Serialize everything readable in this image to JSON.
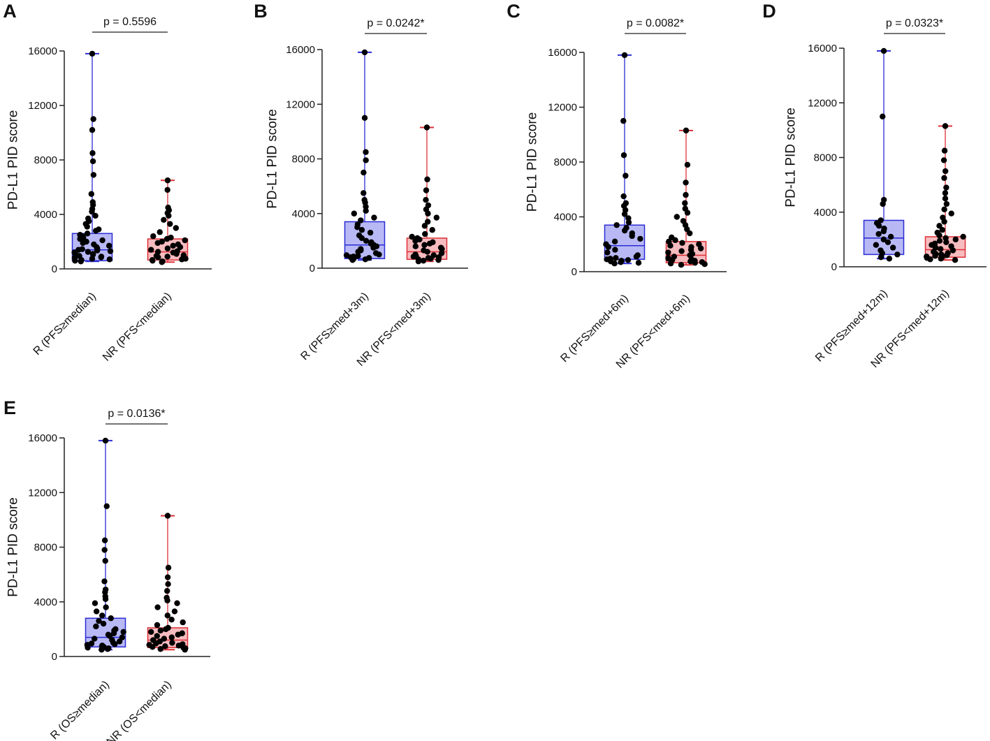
{
  "figure": {
    "colors": {
      "R": {
        "fill": "#b8b9f4",
        "stroke": "#2b2bd6"
      },
      "NR": {
        "fill": "#f6bcbf",
        "stroke": "#dd3037"
      },
      "point": "#000000",
      "axis": "#222222"
    }
  },
  "chart_data": [
    {
      "panel": "A",
      "type": "box",
      "ylabel": "PD-L1 PID score",
      "ylim": [
        0,
        16000
      ],
      "yticks": [
        0,
        4000,
        8000,
        12000,
        16000
      ],
      "ytick_labels": [
        "0",
        "4000",
        "8000",
        "12000",
        "16000"
      ],
      "pvalue": "p = 0.5596",
      "categories": [
        "R (PFS≥median)",
        "NR (PFS<median)"
      ],
      "groups": [
        {
          "name": "R (PFS≥median)",
          "color_key": "R",
          "min": 550,
          "q1": 600,
          "median": 1400,
          "q3": 2600,
          "max": 15800,
          "points": [
            15800,
            11000,
            10200,
            8500,
            7900,
            6900,
            5500,
            4900,
            4700,
            4400,
            4200,
            3900,
            3700,
            3500,
            3300,
            3100,
            2900,
            2800,
            2600,
            2500,
            2400,
            2300,
            2200,
            2100,
            2000,
            1900,
            1800,
            1700,
            1600,
            1500,
            1450,
            1400,
            1350,
            1300,
            1250,
            1200,
            1150,
            1100,
            1050,
            1000,
            950,
            900,
            850,
            800,
            750,
            700,
            650,
            600,
            550
          ]
        },
        {
          "name": "NR (PFS<median)",
          "color_key": "NR",
          "min": 500,
          "q1": 650,
          "median": 1250,
          "q3": 2200,
          "max": 6500,
          "points": [
            6500,
            5800,
            4500,
            4300,
            4100,
            3900,
            3600,
            3300,
            3000,
            2700,
            2400,
            2300,
            2200,
            2100,
            2000,
            1900,
            1800,
            1700,
            1600,
            1500,
            1400,
            1300,
            1250,
            1200,
            1100,
            1000,
            950,
            900,
            850,
            800,
            750,
            700,
            650,
            600,
            550,
            500
          ]
        }
      ]
    },
    {
      "panel": "B",
      "type": "box",
      "ylabel": "PD-L1 PID score",
      "ylim": [
        0,
        16000
      ],
      "yticks": [
        0,
        4000,
        8000,
        12000,
        16000
      ],
      "ytick_labels": [
        "0",
        "4000",
        "8000",
        "12000",
        "16000"
      ],
      "pvalue": "p = 0.0242*",
      "categories": [
        "R (PFS≥med+3m)",
        "NR (PFS<med+3m)"
      ],
      "groups": [
        {
          "name": "R (PFS≥med+3m)",
          "color_key": "R",
          "min": 600,
          "q1": 700,
          "median": 1700,
          "q3": 3400,
          "max": 15800,
          "points": [
            15800,
            11000,
            8500,
            7900,
            7000,
            5500,
            5000,
            4800,
            4500,
            4200,
            4000,
            3700,
            3500,
            3200,
            3000,
            2800,
            2600,
            2400,
            2200,
            2000,
            1900,
            1800,
            1700,
            1600,
            1500,
            1400,
            1300,
            1200,
            1100,
            1000,
            950,
            900,
            850,
            800,
            750,
            700,
            650,
            600
          ]
        },
        {
          "name": "NR (PFS<med+3m)",
          "color_key": "NR",
          "min": 500,
          "q1": 650,
          "median": 1200,
          "q3": 2200,
          "max": 10300,
          "points": [
            10300,
            6500,
            5700,
            5000,
            4600,
            4300,
            4000,
            3700,
            3400,
            3100,
            2800,
            2500,
            2300,
            2200,
            2100,
            2000,
            1900,
            1800,
            1700,
            1600,
            1500,
            1400,
            1300,
            1200,
            1100,
            1000,
            950,
            900,
            850,
            800,
            750,
            700,
            650,
            600,
            550,
            500
          ]
        }
      ]
    },
    {
      "panel": "C",
      "type": "box",
      "ylabel": "PD-L1 PID score",
      "ylim": [
        0,
        16000
      ],
      "yticks": [
        0,
        4000,
        8000,
        12000,
        16000
      ],
      "ytick_labels": [
        "0",
        "4000",
        "8000",
        "12000",
        "16000"
      ],
      "pvalue": "p = 0.0082*",
      "categories": [
        "R (PFS≥med+6m)",
        "NR (PFS<med+6m)"
      ],
      "groups": [
        {
          "name": "R (PFS≥med+6m)",
          "color_key": "R",
          "min": 600,
          "q1": 900,
          "median": 1900,
          "q3": 3400,
          "max": 15800,
          "points": [
            15800,
            11000,
            8500,
            7000,
            5500,
            5000,
            4800,
            4500,
            4200,
            3900,
            3600,
            3400,
            3200,
            3000,
            2800,
            2600,
            2400,
            2200,
            2000,
            1800,
            1600,
            1400,
            1200,
            1100,
            1000,
            950,
            900,
            850,
            800,
            750,
            700,
            650,
            600
          ]
        },
        {
          "name": "NR (PFS<med+6m)",
          "color_key": "NR",
          "min": 500,
          "q1": 650,
          "median": 1200,
          "q3": 2200,
          "max": 10300,
          "points": [
            10300,
            7800,
            6500,
            5600,
            5000,
            4600,
            4300,
            4000,
            3700,
            3400,
            3100,
            2800,
            2500,
            2300,
            2200,
            2100,
            2000,
            1900,
            1800,
            1700,
            1600,
            1500,
            1400,
            1300,
            1200,
            1100,
            1000,
            950,
            900,
            850,
            800,
            750,
            700,
            650,
            600,
            550,
            500
          ]
        }
      ]
    },
    {
      "panel": "D",
      "type": "box",
      "ylabel": "PD-L1 PID score",
      "ylim": [
        0,
        16000
      ],
      "yticks": [
        0,
        4000,
        8000,
        12000,
        16000
      ],
      "ytick_labels": [
        "0",
        "4000",
        "8000",
        "12000",
        "16000"
      ],
      "pvalue": "p = 0.0323*",
      "categories": [
        "R (PFS≥med+12m)",
        "NR (PFS<med+12m)"
      ],
      "groups": [
        {
          "name": "R (PFS≥med+12m)",
          "color_key": "R",
          "min": 600,
          "q1": 900,
          "median": 2100,
          "q3": 3400,
          "max": 15800,
          "points": [
            15800,
            11000,
            4900,
            4600,
            3400,
            3200,
            3000,
            2800,
            2600,
            2400,
            2200,
            2000,
            1800,
            1600,
            1400,
            1200,
            1000,
            900,
            700,
            600
          ]
        },
        {
          "name": "NR (PFS<med+12m)",
          "color_key": "NR",
          "min": 500,
          "q1": 700,
          "median": 1250,
          "q3": 2200,
          "max": 10300,
          "points": [
            10300,
            8500,
            7800,
            7000,
            6500,
            5800,
            5400,
            5000,
            4600,
            4200,
            3900,
            3600,
            3300,
            3000,
            2700,
            2500,
            2300,
            2200,
            2100,
            2000,
            1900,
            1800,
            1700,
            1600,
            1500,
            1400,
            1300,
            1200,
            1100,
            1000,
            950,
            900,
            850,
            800,
            750,
            700,
            650,
            600,
            550,
            500
          ]
        }
      ]
    },
    {
      "panel": "E",
      "type": "box",
      "ylabel": "PD-L1 PID score",
      "ylim": [
        0,
        16000
      ],
      "yticks": [
        0,
        4000,
        8000,
        12000,
        16000
      ],
      "ytick_labels": [
        "0",
        "4000",
        "8000",
        "12000",
        "16000"
      ],
      "pvalue": "p = 0.0136*",
      "categories": [
        "R (OS≥median)",
        "NR (OS<median)"
      ],
      "groups": [
        {
          "name": "R (OS≥median)",
          "color_key": "R",
          "min": 500,
          "q1": 700,
          "median": 1400,
          "q3": 2800,
          "max": 15800,
          "points": [
            15800,
            11000,
            8500,
            7800,
            7000,
            5500,
            4900,
            4700,
            4400,
            4200,
            3900,
            3600,
            3300,
            3000,
            2800,
            2600,
            2400,
            2200,
            2000,
            1900,
            1800,
            1700,
            1600,
            1500,
            1400,
            1300,
            1200,
            1100,
            1000,
            950,
            900,
            850,
            800,
            750,
            700,
            650,
            600,
            550,
            500
          ]
        },
        {
          "name": "NR (OS<median)",
          "color_key": "NR",
          "min": 500,
          "q1": 650,
          "median": 1200,
          "q3": 2100,
          "max": 10300,
          "points": [
            10300,
            6500,
            5800,
            5300,
            4800,
            4300,
            4100,
            3900,
            3600,
            3300,
            3000,
            2700,
            2500,
            2300,
            2100,
            2000,
            1900,
            1800,
            1700,
            1600,
            1500,
            1400,
            1300,
            1200,
            1100,
            1000,
            950,
            900,
            850,
            800,
            750,
            700,
            650,
            600,
            550,
            500
          ]
        }
      ]
    }
  ]
}
